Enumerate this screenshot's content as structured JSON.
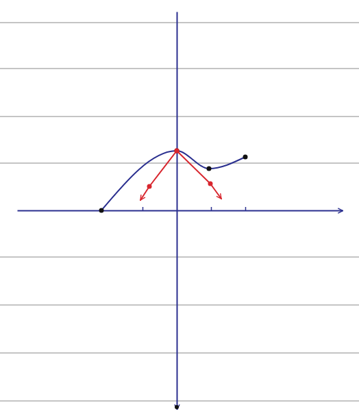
{
  "chart_data": {
    "type": "line",
    "tick_labels": false,
    "xlim": [
      -4.66,
      4.84
    ],
    "ylim": [
      -5.8,
      5.8
    ],
    "xticks": [
      -1,
      1,
      2
    ],
    "yticks": [],
    "series": [
      {
        "color": "#2a2f8f",
        "marker": "circle",
        "line_style": "solid",
        "x": [
          -2.2,
          0,
          0.94,
          2
        ],
        "values": [
          0,
          1.74,
          1.22,
          1.56
        ]
      },
      {
        "color": "#d8262e",
        "marker": "circle",
        "line_style": "arrow",
        "x": [
          0,
          -0.8,
          -1.06
        ],
        "values": [
          1.74,
          0.7,
          0.3
        ]
      },
      {
        "color": "#d8262e",
        "marker": "circle",
        "line_style": "arrow",
        "x": [
          0,
          0.98,
          1.3
        ],
        "values": [
          1.74,
          0.78,
          0.34
        ]
      }
    ]
  }
}
